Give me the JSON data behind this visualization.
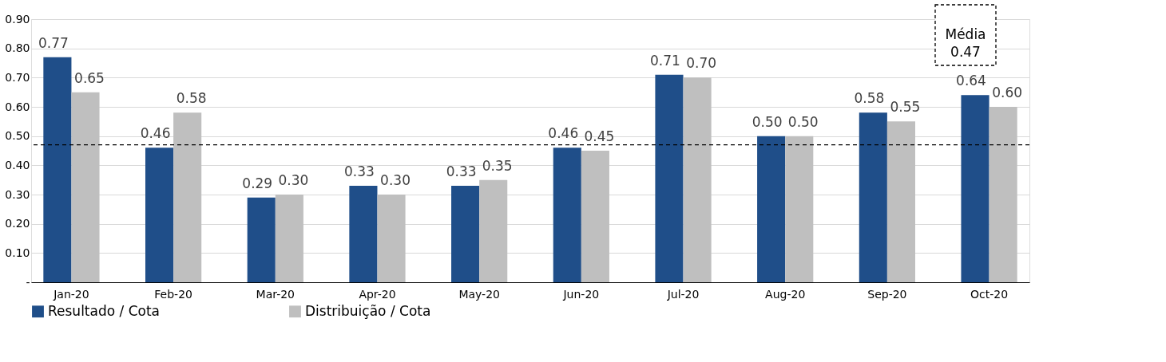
{
  "chart_data": {
    "type": "bar",
    "categories": [
      "Jan-20",
      "Feb-20",
      "Mar-20",
      "Apr-20",
      "May-20",
      "Jun-20",
      "Jul-20",
      "Aug-20",
      "Sep-20",
      "Oct-20"
    ],
    "series": [
      {
        "name": "Resultado / Cota",
        "color": "#1f4e89",
        "values": [
          0.77,
          0.46,
          0.29,
          0.33,
          0.33,
          0.46,
          0.71,
          0.5,
          0.58,
          0.64
        ],
        "value_labels": [
          "0.77",
          "0.46",
          "0.29",
          "0.33",
          "0.33",
          "0.46",
          "0.71",
          "0.50",
          "0.58",
          "0.64"
        ]
      },
      {
        "name": "Distribuição / Cota",
        "color": "#bfbfbf",
        "values": [
          0.65,
          0.58,
          0.3,
          0.3,
          0.35,
          0.45,
          0.7,
          0.5,
          0.55,
          0.6
        ],
        "value_labels": [
          "0.65",
          "0.58",
          "0.30",
          "0.30",
          "0.35",
          "0.45",
          "0.70",
          "0.50",
          "0.55",
          "0.60"
        ]
      }
    ],
    "ylim": [
      0,
      0.9
    ],
    "yticks": [
      {
        "value": 0,
        "label": "-"
      },
      {
        "value": 0.1,
        "label": "0.10"
      },
      {
        "value": 0.2,
        "label": "0.20"
      },
      {
        "value": 0.3,
        "label": "0.30"
      },
      {
        "value": 0.4,
        "label": "0.40"
      },
      {
        "value": 0.5,
        "label": "0.50"
      },
      {
        "value": 0.6,
        "label": "0.60"
      },
      {
        "value": 0.7,
        "label": "0.70"
      },
      {
        "value": 0.8,
        "label": "0.80"
      },
      {
        "value": 0.9,
        "label": "0.90"
      }
    ],
    "ref_lines": [
      {
        "axis": "y",
        "value": 0.47,
        "color": "#000000",
        "line_style": "dashed"
      }
    ],
    "annotations": [
      "Média 0.47"
    ],
    "grid": "y",
    "legend": "bottom"
  }
}
